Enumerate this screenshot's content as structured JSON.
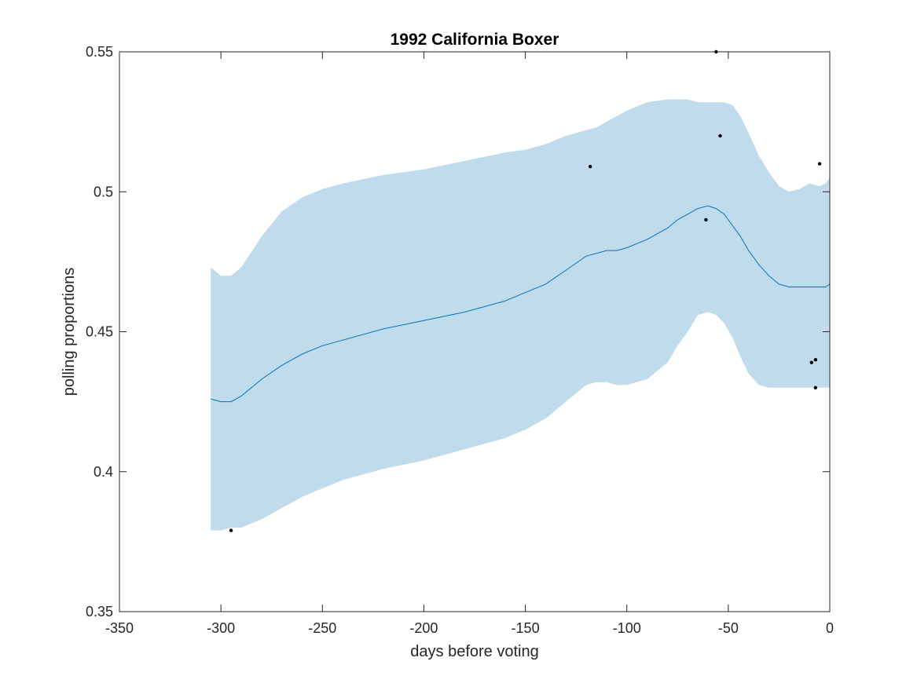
{
  "chart_data": {
    "type": "line",
    "title": "1992 California Boxer",
    "xlabel": "days before voting",
    "ylabel": "polling proportions",
    "xlim": [
      -350,
      0
    ],
    "ylim": [
      0.35,
      0.55
    ],
    "xticks": [
      -350,
      -300,
      -250,
      -200,
      -150,
      -100,
      -50,
      0
    ],
    "xtick_labels": [
      "-350",
      "-300",
      "-250",
      "-200",
      "-150",
      "-100",
      "-50",
      "0"
    ],
    "yticks": [
      0.35,
      0.4,
      0.45,
      0.5,
      0.55
    ],
    "ytick_labels": [
      "0.35",
      "0.4",
      "0.45",
      "0.5",
      "0.55"
    ],
    "grid": false,
    "colors": {
      "mean_line": "#0072bd",
      "band_fill": "#c0dcec",
      "points": "#000000"
    },
    "series": [
      {
        "kind": "band",
        "x": [
          -305,
          -300,
          -295,
          -290,
          -280,
          -270,
          -260,
          -250,
          -240,
          -220,
          -200,
          -180,
          -160,
          -150,
          -140,
          -130,
          -120,
          -115,
          -110,
          -105,
          -100,
          -90,
          -80,
          -75,
          -70,
          -65,
          -60,
          -56,
          -52,
          -48,
          -44,
          -40,
          -35,
          -30,
          -25,
          -20,
          -15,
          -10,
          -5,
          -2,
          0
        ],
        "upper": [
          0.473,
          0.47,
          0.47,
          0.473,
          0.484,
          0.493,
          0.498,
          0.501,
          0.503,
          0.506,
          0.508,
          0.511,
          0.514,
          0.515,
          0.517,
          0.52,
          0.522,
          0.523,
          0.525,
          0.527,
          0.529,
          0.532,
          0.533,
          0.533,
          0.533,
          0.532,
          0.532,
          0.532,
          0.532,
          0.531,
          0.527,
          0.521,
          0.513,
          0.507,
          0.502,
          0.5,
          0.501,
          0.503,
          0.502,
          0.503,
          0.505
        ],
        "lower": [
          0.379,
          0.379,
          0.38,
          0.38,
          0.383,
          0.387,
          0.391,
          0.394,
          0.397,
          0.401,
          0.404,
          0.408,
          0.412,
          0.415,
          0.419,
          0.425,
          0.431,
          0.432,
          0.432,
          0.431,
          0.431,
          0.433,
          0.439,
          0.445,
          0.45,
          0.456,
          0.457,
          0.456,
          0.453,
          0.448,
          0.441,
          0.435,
          0.431,
          0.43,
          0.43,
          0.43,
          0.43,
          0.43,
          0.43,
          0.43,
          0.43
        ]
      },
      {
        "kind": "line",
        "x": [
          -305,
          -300,
          -295,
          -290,
          -280,
          -270,
          -260,
          -250,
          -240,
          -220,
          -200,
          -180,
          -160,
          -150,
          -140,
          -130,
          -120,
          -115,
          -110,
          -105,
          -100,
          -90,
          -80,
          -75,
          -70,
          -65,
          -60,
          -56,
          -52,
          -48,
          -44,
          -40,
          -35,
          -30,
          -25,
          -20,
          -15,
          -10,
          -5,
          -2,
          0
        ],
        "y": [
          0.426,
          0.425,
          0.425,
          0.427,
          0.433,
          0.438,
          0.442,
          0.445,
          0.447,
          0.451,
          0.454,
          0.457,
          0.461,
          0.464,
          0.467,
          0.472,
          0.477,
          0.478,
          0.479,
          0.479,
          0.48,
          0.483,
          0.487,
          0.49,
          0.492,
          0.494,
          0.495,
          0.494,
          0.492,
          0.488,
          0.484,
          0.479,
          0.474,
          0.47,
          0.467,
          0.466,
          0.466,
          0.466,
          0.466,
          0.466,
          0.467
        ]
      },
      {
        "kind": "scatter",
        "x": [
          -295,
          -118,
          -61,
          -56,
          -54,
          -9,
          -7,
          -7,
          -5
        ],
        "y": [
          0.379,
          0.509,
          0.49,
          0.55,
          0.52,
          0.439,
          0.44,
          0.43,
          0.51
        ]
      }
    ]
  }
}
